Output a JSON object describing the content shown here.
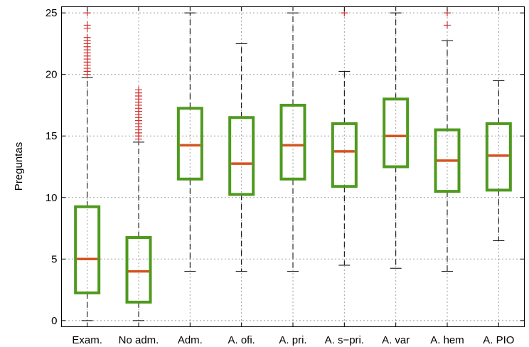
{
  "chart_data": {
    "type": "boxplot",
    "ylabel": "Preguntas",
    "ylim": [
      -0.5,
      25.5
    ],
    "yticks": [
      0,
      5,
      10,
      15,
      20,
      25
    ],
    "grid": true,
    "colors": {
      "box": "#4f9a1e",
      "median": "#d4541e",
      "outlier": "#d03030",
      "whisker": "#000000"
    },
    "categories": [
      "Exam.",
      "No adm.",
      "Adm.",
      "A. ofi.",
      "A. pri.",
      "A. s−pri.",
      "A. var",
      "A. hem",
      "A. PIO"
    ],
    "boxes": [
      {
        "category": "Exam.",
        "whisker_low": 0,
        "q1": 2.25,
        "median": 5,
        "q3": 9.25,
        "whisker_high": 19.75,
        "outliers": [
          20,
          20.25,
          20.5,
          20.75,
          21,
          21.25,
          21.5,
          21.75,
          22,
          22.25,
          22.5,
          22.75,
          23,
          23.75,
          24,
          25
        ]
      },
      {
        "category": "No adm.",
        "whisker_low": 0,
        "q1": 1.5,
        "median": 4,
        "q3": 6.75,
        "whisker_high": 14.5,
        "outliers": [
          14.75,
          15,
          15.25,
          15.5,
          15.75,
          16,
          16.25,
          16.5,
          16.75,
          17,
          17.25,
          17.5,
          17.75,
          18,
          18.25,
          18.5,
          18.75
        ]
      },
      {
        "category": "Adm.",
        "whisker_low": 4,
        "q1": 11.5,
        "median": 14.25,
        "q3": 17.25,
        "whisker_high": 25,
        "outliers": []
      },
      {
        "category": "A. ofi.",
        "whisker_low": 4,
        "q1": 10.25,
        "median": 12.75,
        "q3": 16.5,
        "whisker_high": 22.5,
        "outliers": []
      },
      {
        "category": "A. pri.",
        "whisker_low": 4,
        "q1": 11.5,
        "median": 14.25,
        "q3": 17.5,
        "whisker_high": 25,
        "outliers": []
      },
      {
        "category": "A. s−pri.",
        "whisker_low": 4.5,
        "q1": 10.9,
        "median": 13.75,
        "q3": 16,
        "whisker_high": 20.25,
        "outliers": [
          25
        ]
      },
      {
        "category": "A. var",
        "whisker_low": 4.25,
        "q1": 12.5,
        "median": 15,
        "q3": 18,
        "whisker_high": 25,
        "outliers": []
      },
      {
        "category": "A. hem",
        "whisker_low": 4,
        "q1": 10.5,
        "median": 13,
        "q3": 15.5,
        "whisker_high": 22.75,
        "outliers": [
          24,
          25
        ]
      },
      {
        "category": "A. PIO",
        "whisker_low": 6.5,
        "q1": 10.6,
        "median": 13.4,
        "q3": 16,
        "whisker_high": 19.5,
        "outliers": []
      }
    ]
  }
}
